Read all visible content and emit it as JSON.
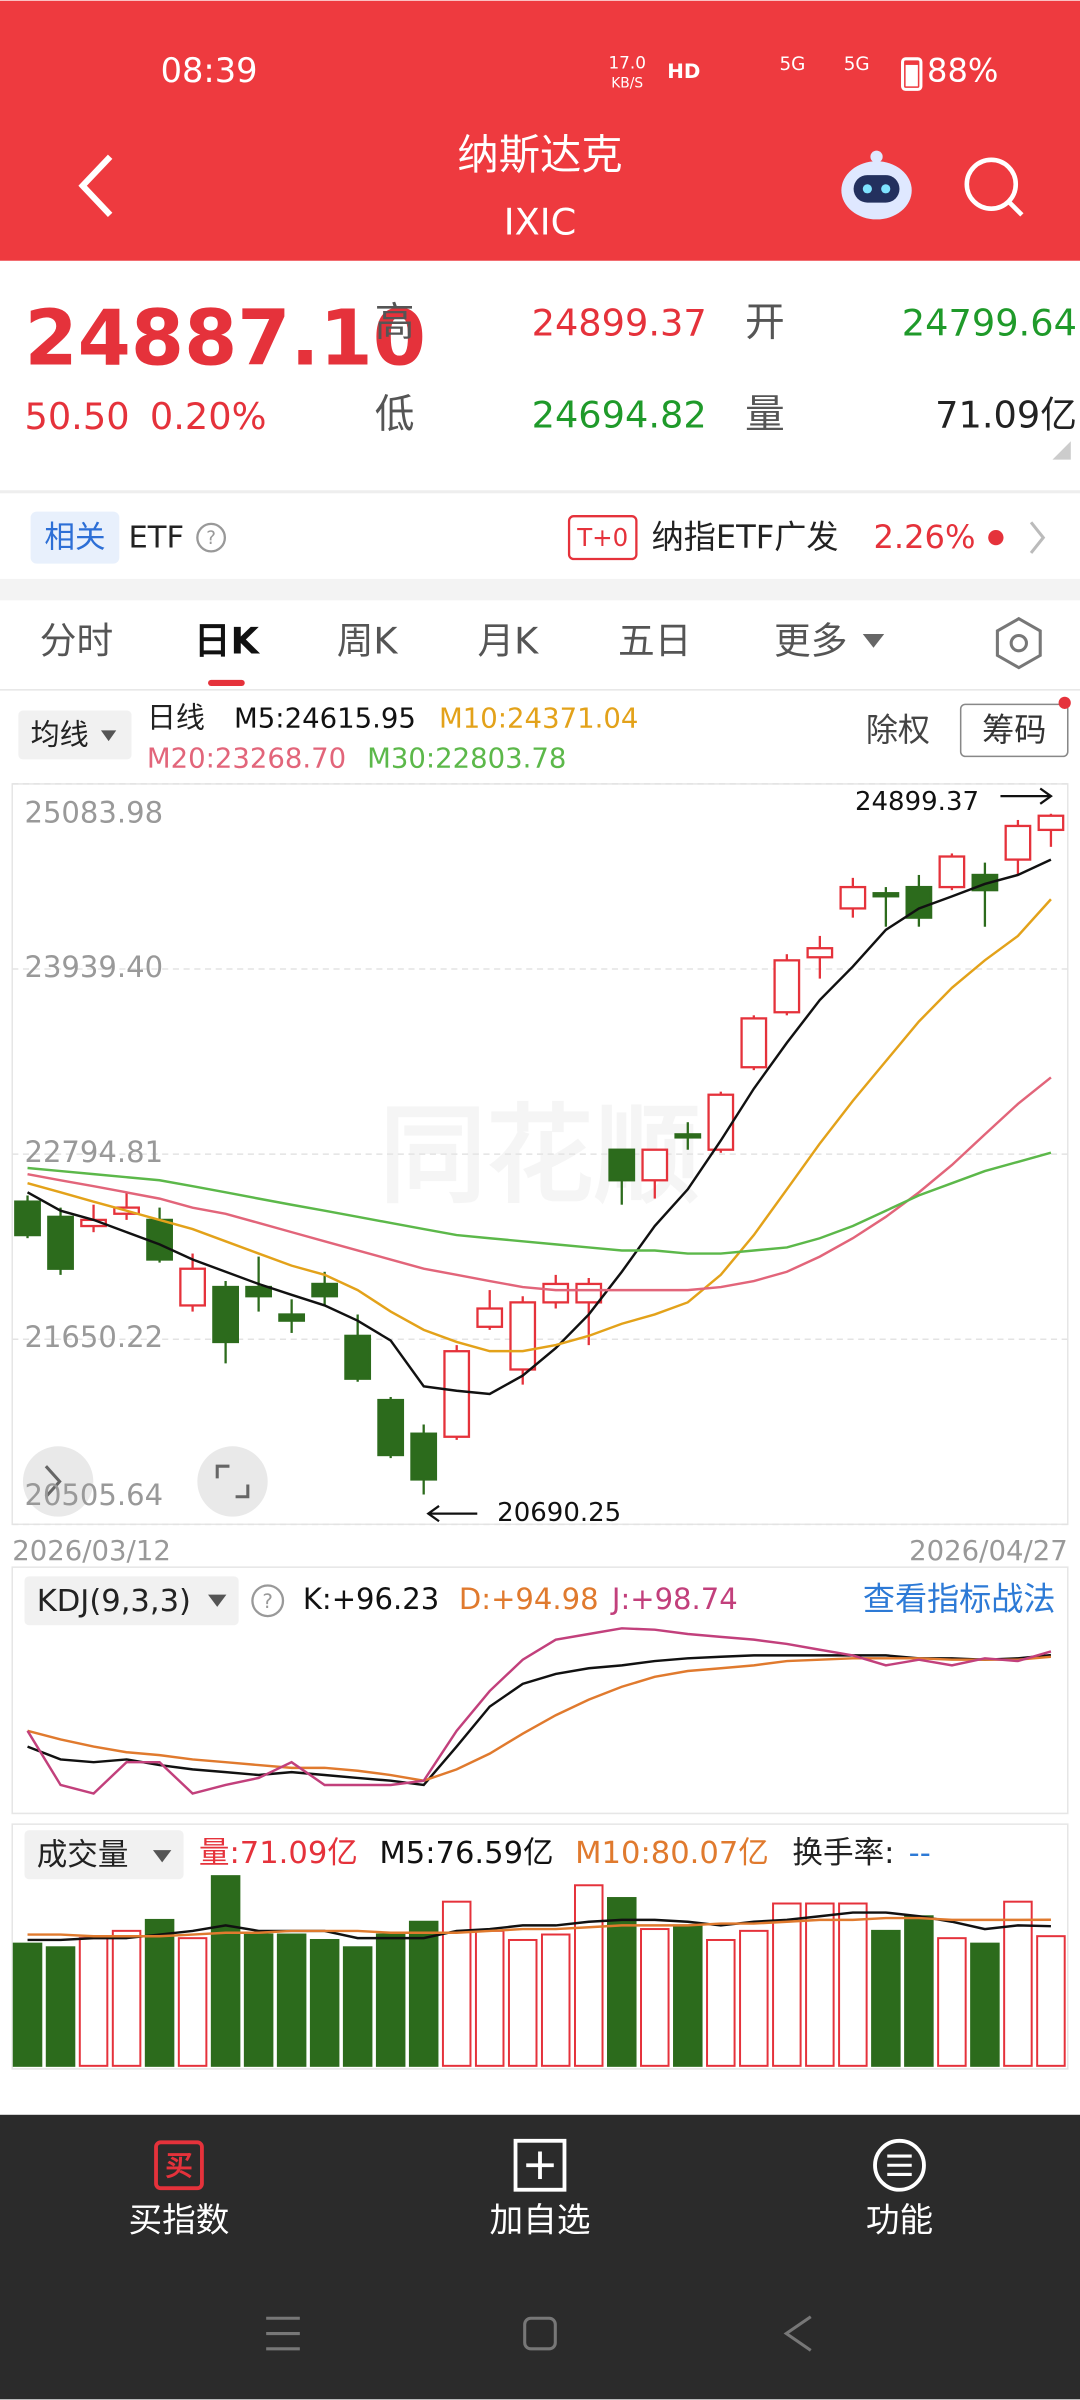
{
  "status_bar": {
    "time": "08:39",
    "speed_value": "17.0",
    "speed_unit": "KB/S",
    "hd": "HD",
    "signal_1": "5G",
    "signal_2": "5G",
    "battery": "88%"
  },
  "header": {
    "title": "纳斯达克",
    "subtitle": "IXIC"
  },
  "quote": {
    "price": "24887.10",
    "change": "50.50",
    "change_pct": "0.20%",
    "high_label": "高",
    "high": "24899.37",
    "open_label": "开",
    "open": "24799.64",
    "low_label": "低",
    "low": "24694.82",
    "volume_label": "量",
    "volume": "71.09亿"
  },
  "etf_bar": {
    "tag": "相关",
    "label": "ETF",
    "t0": "T+0",
    "etf_name": "纳指ETF广发",
    "etf_change": "2.26%"
  },
  "tabs": [
    "分时",
    "日K",
    "周K",
    "月K",
    "五日",
    "更多"
  ],
  "chart_toolbar": {
    "ma_button": "均线",
    "period": "日线",
    "ex_rights": "除权",
    "chips": "筹码"
  },
  "watermark": "同花顺",
  "chart_data": [
    {
      "type": "candlestick",
      "categories": [
        "2026/03/12",
        null,
        null,
        null,
        null,
        null,
        null,
        null,
        null,
        null,
        null,
        null,
        null,
        null,
        null,
        null,
        null,
        null,
        null,
        null,
        null,
        null,
        null,
        null,
        null,
        null,
        null,
        null,
        null,
        null,
        null,
        "2026/04/27"
      ],
      "open": [
        22501,
        22407,
        22350,
        22426,
        22388,
        21859,
        21973,
        21973,
        21803,
        21992,
        21671,
        21274,
        21066,
        21047,
        21727,
        21463,
        21878,
        21878,
        22822,
        22633,
        22917,
        22822,
        23332,
        23672,
        24012,
        24314,
        24408,
        24446,
        24446,
        24521,
        24616,
        24799.64
      ],
      "high": [
        22539,
        22464,
        22482,
        22558,
        22464,
        22180,
        22010,
        22161,
        21897,
        22067,
        21803,
        21293,
        21123,
        21614,
        21954,
        21916,
        22048,
        22029,
        22822,
        22822,
        22992,
        23181,
        23653,
        24031,
        24144,
        24503,
        24446,
        24521,
        24654,
        24597,
        24861,
        24899.37
      ],
      "low": [
        22275,
        22048,
        22312,
        22388,
        22124,
        21821,
        21501,
        21821,
        21689,
        21859,
        21387,
        20915,
        20690.25,
        21028,
        21708,
        21369,
        21840,
        21614,
        22482,
        22520,
        22822,
        22803,
        23314,
        23653,
        23880,
        24257,
        24201,
        24201,
        24427,
        24201,
        24521,
        24694.82
      ],
      "close": [
        22294,
        22086,
        22388,
        22464,
        22143,
        22086,
        21633,
        21916,
        21765,
        21916,
        21406,
        20934,
        20783,
        21576,
        21840,
        21878,
        21992,
        21992,
        22633,
        22822,
        22898,
        23162,
        23634,
        23993,
        24068,
        24446,
        24389,
        24257,
        24635,
        24427,
        24824,
        24887.1
      ],
      "up_color": "#e5323b",
      "down_color": "#2c6b1c",
      "series": [
        {
          "name": "M5:24615.95",
          "color": "#111111",
          "values": [
            22558,
            22445,
            22388,
            22312,
            22237,
            22143,
            22067,
            21992,
            21925,
            21859,
            21765,
            21642,
            21359,
            21331,
            21312,
            21425,
            21595,
            21803,
            22067,
            22350,
            22577,
            22879,
            23200,
            23483,
            23747,
            23955,
            24182,
            24314,
            24389,
            24465,
            24521,
            24615.95
          ]
        },
        {
          "name": "M10:24371.04",
          "color": "#e3a21a",
          "values": [
            22615,
            22558,
            22501,
            22445,
            22388,
            22331,
            22256,
            22180,
            22105,
            22048,
            21954,
            21821,
            21708,
            21633,
            21576,
            21576,
            21614,
            21671,
            21746,
            21803,
            21878,
            22048,
            22294,
            22577,
            22860,
            23124,
            23370,
            23615,
            23823,
            23993,
            24144,
            24371.04
          ]
        },
        {
          "name": "M20:23268.70",
          "color": "#e2657a",
          "values": [
            22671,
            22633,
            22596,
            22558,
            22520,
            22464,
            22426,
            22369,
            22312,
            22256,
            22199,
            22143,
            22086,
            22048,
            22010,
            21973,
            21954,
            21954,
            21954,
            21954,
            21954,
            21973,
            22010,
            22067,
            22161,
            22275,
            22407,
            22558,
            22728,
            22917,
            23105,
            23268.7
          ]
        },
        {
          "name": "M30:22803.78",
          "color": "#5cb84a",
          "values": [
            22709,
            22690,
            22671,
            22652,
            22633,
            22596,
            22558,
            22520,
            22482,
            22445,
            22407,
            22369,
            22331,
            22294,
            22275,
            22256,
            22237,
            22218,
            22199,
            22199,
            22180,
            22180,
            22199,
            22218,
            22275,
            22350,
            22445,
            22539,
            22615,
            22690,
            22747,
            22803.78
          ]
        }
      ],
      "ylim": [
        20505.64,
        25083.98
      ],
      "yticks": [
        25083.98,
        {
          "value": 23939.4,
          "label": "23939.40"
        },
        22794.81,
        21650.22,
        20505.64
      ],
      "grid": true,
      "annotations": [
        "24899.37",
        "20690.25"
      ]
    },
    {
      "type": "line",
      "title": "KDJ(9,3,3)",
      "link": "查看指标战法",
      "series": [
        {
          "name": "K:+96.23",
          "color": "#111111",
          "values": [
            32,
            23,
            21,
            23,
            19,
            16,
            14,
            12,
            14,
            12,
            10,
            8,
            5,
            32,
            60,
            76,
            83,
            87,
            89,
            92,
            94,
            95,
            96,
            96,
            96,
            96,
            96,
            94,
            94,
            93,
            94,
            96.23
          ]
        },
        {
          "name": "D:+94.98",
          "color": "#e07a2e",
          "values": [
            43,
            37,
            32,
            28,
            26,
            23,
            21,
            19,
            17,
            17,
            15,
            12,
            8,
            16,
            27,
            41,
            54,
            65,
            74,
            81,
            85,
            87,
            89,
            92,
            93,
            94,
            94,
            94,
            93,
            93,
            93,
            94.98
          ]
        },
        {
          "name": "J:+98.74",
          "color": "#c2407c",
          "values": [
            43,
            5,
            -1,
            21,
            21,
            -1,
            5,
            10,
            21,
            5,
            5,
            5,
            8,
            43,
            71,
            93,
            107,
            111,
            115,
            114,
            111,
            109,
            107,
            104,
            100,
            96,
            89,
            93,
            89,
            94,
            92,
            98.74
          ]
        }
      ]
    },
    {
      "type": "bar",
      "title": "成交量",
      "series": [
        {
          "name": "量:71.09亿",
          "color": "#e5323b",
          "values": [
            67,
            65,
            70,
            74,
            80,
            70,
            104,
            72,
            72,
            69,
            65,
            72,
            79,
            90,
            74,
            69,
            72,
            99,
            92,
            75,
            77,
            69,
            74,
            89,
            89,
            89,
            74,
            82,
            70,
            67,
            90,
            71.09
          ]
        },
        {
          "name": "M5:76.59亿",
          "color": "#111111",
          "type": "line",
          "values": [
            69,
            69,
            70,
            70,
            72,
            74,
            77,
            74,
            74,
            74,
            70,
            70,
            70,
            74,
            75,
            77,
            77,
            79,
            80,
            80,
            79,
            77,
            79,
            80,
            82,
            84,
            84,
            82,
            79,
            75,
            77,
            76.59
          ]
        },
        {
          "name": "M10:80.07亿",
          "color": "#e07a2e",
          "type": "line",
          "values": [
            72,
            72,
            71,
            71,
            71,
            72,
            73,
            73,
            74,
            74,
            74,
            73,
            73,
            73,
            74,
            75,
            75,
            76,
            77,
            77,
            77,
            78,
            78,
            79,
            80,
            80,
            81,
            81,
            80,
            80,
            80,
            80.07
          ]
        }
      ],
      "turnover_label": "换手率:",
      "turnover_value": "--"
    }
  ],
  "bottom_nav": {
    "buy_icon": "买",
    "items": [
      "买指数",
      "加自选",
      "功能"
    ]
  }
}
